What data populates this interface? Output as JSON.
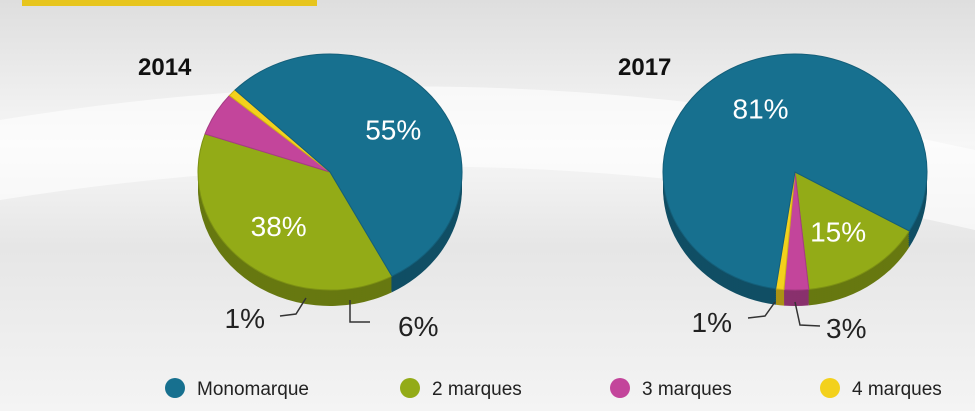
{
  "chart_data": [
    {
      "type": "pie",
      "title": "2014",
      "categories": [
        "Monomarque",
        "2 marques",
        "3 marques",
        "4 marques"
      ],
      "values": [
        55,
        38,
        6,
        1
      ],
      "value_labels": [
        "55%",
        "38%",
        "6%",
        "1%"
      ],
      "colors": [
        "#17708f",
        "#93ab17",
        "#c3459b",
        "#f3d11c"
      ]
    },
    {
      "type": "pie",
      "title": "2017",
      "categories": [
        "Monomarque",
        "2 marques",
        "3 marques",
        "4 marques"
      ],
      "values": [
        81,
        15,
        3,
        1
      ],
      "value_labels": [
        "81%",
        "15%",
        "3%",
        "1%"
      ],
      "colors": [
        "#17708f",
        "#93ab17",
        "#c3459b",
        "#f3d11c"
      ]
    }
  ]
}
